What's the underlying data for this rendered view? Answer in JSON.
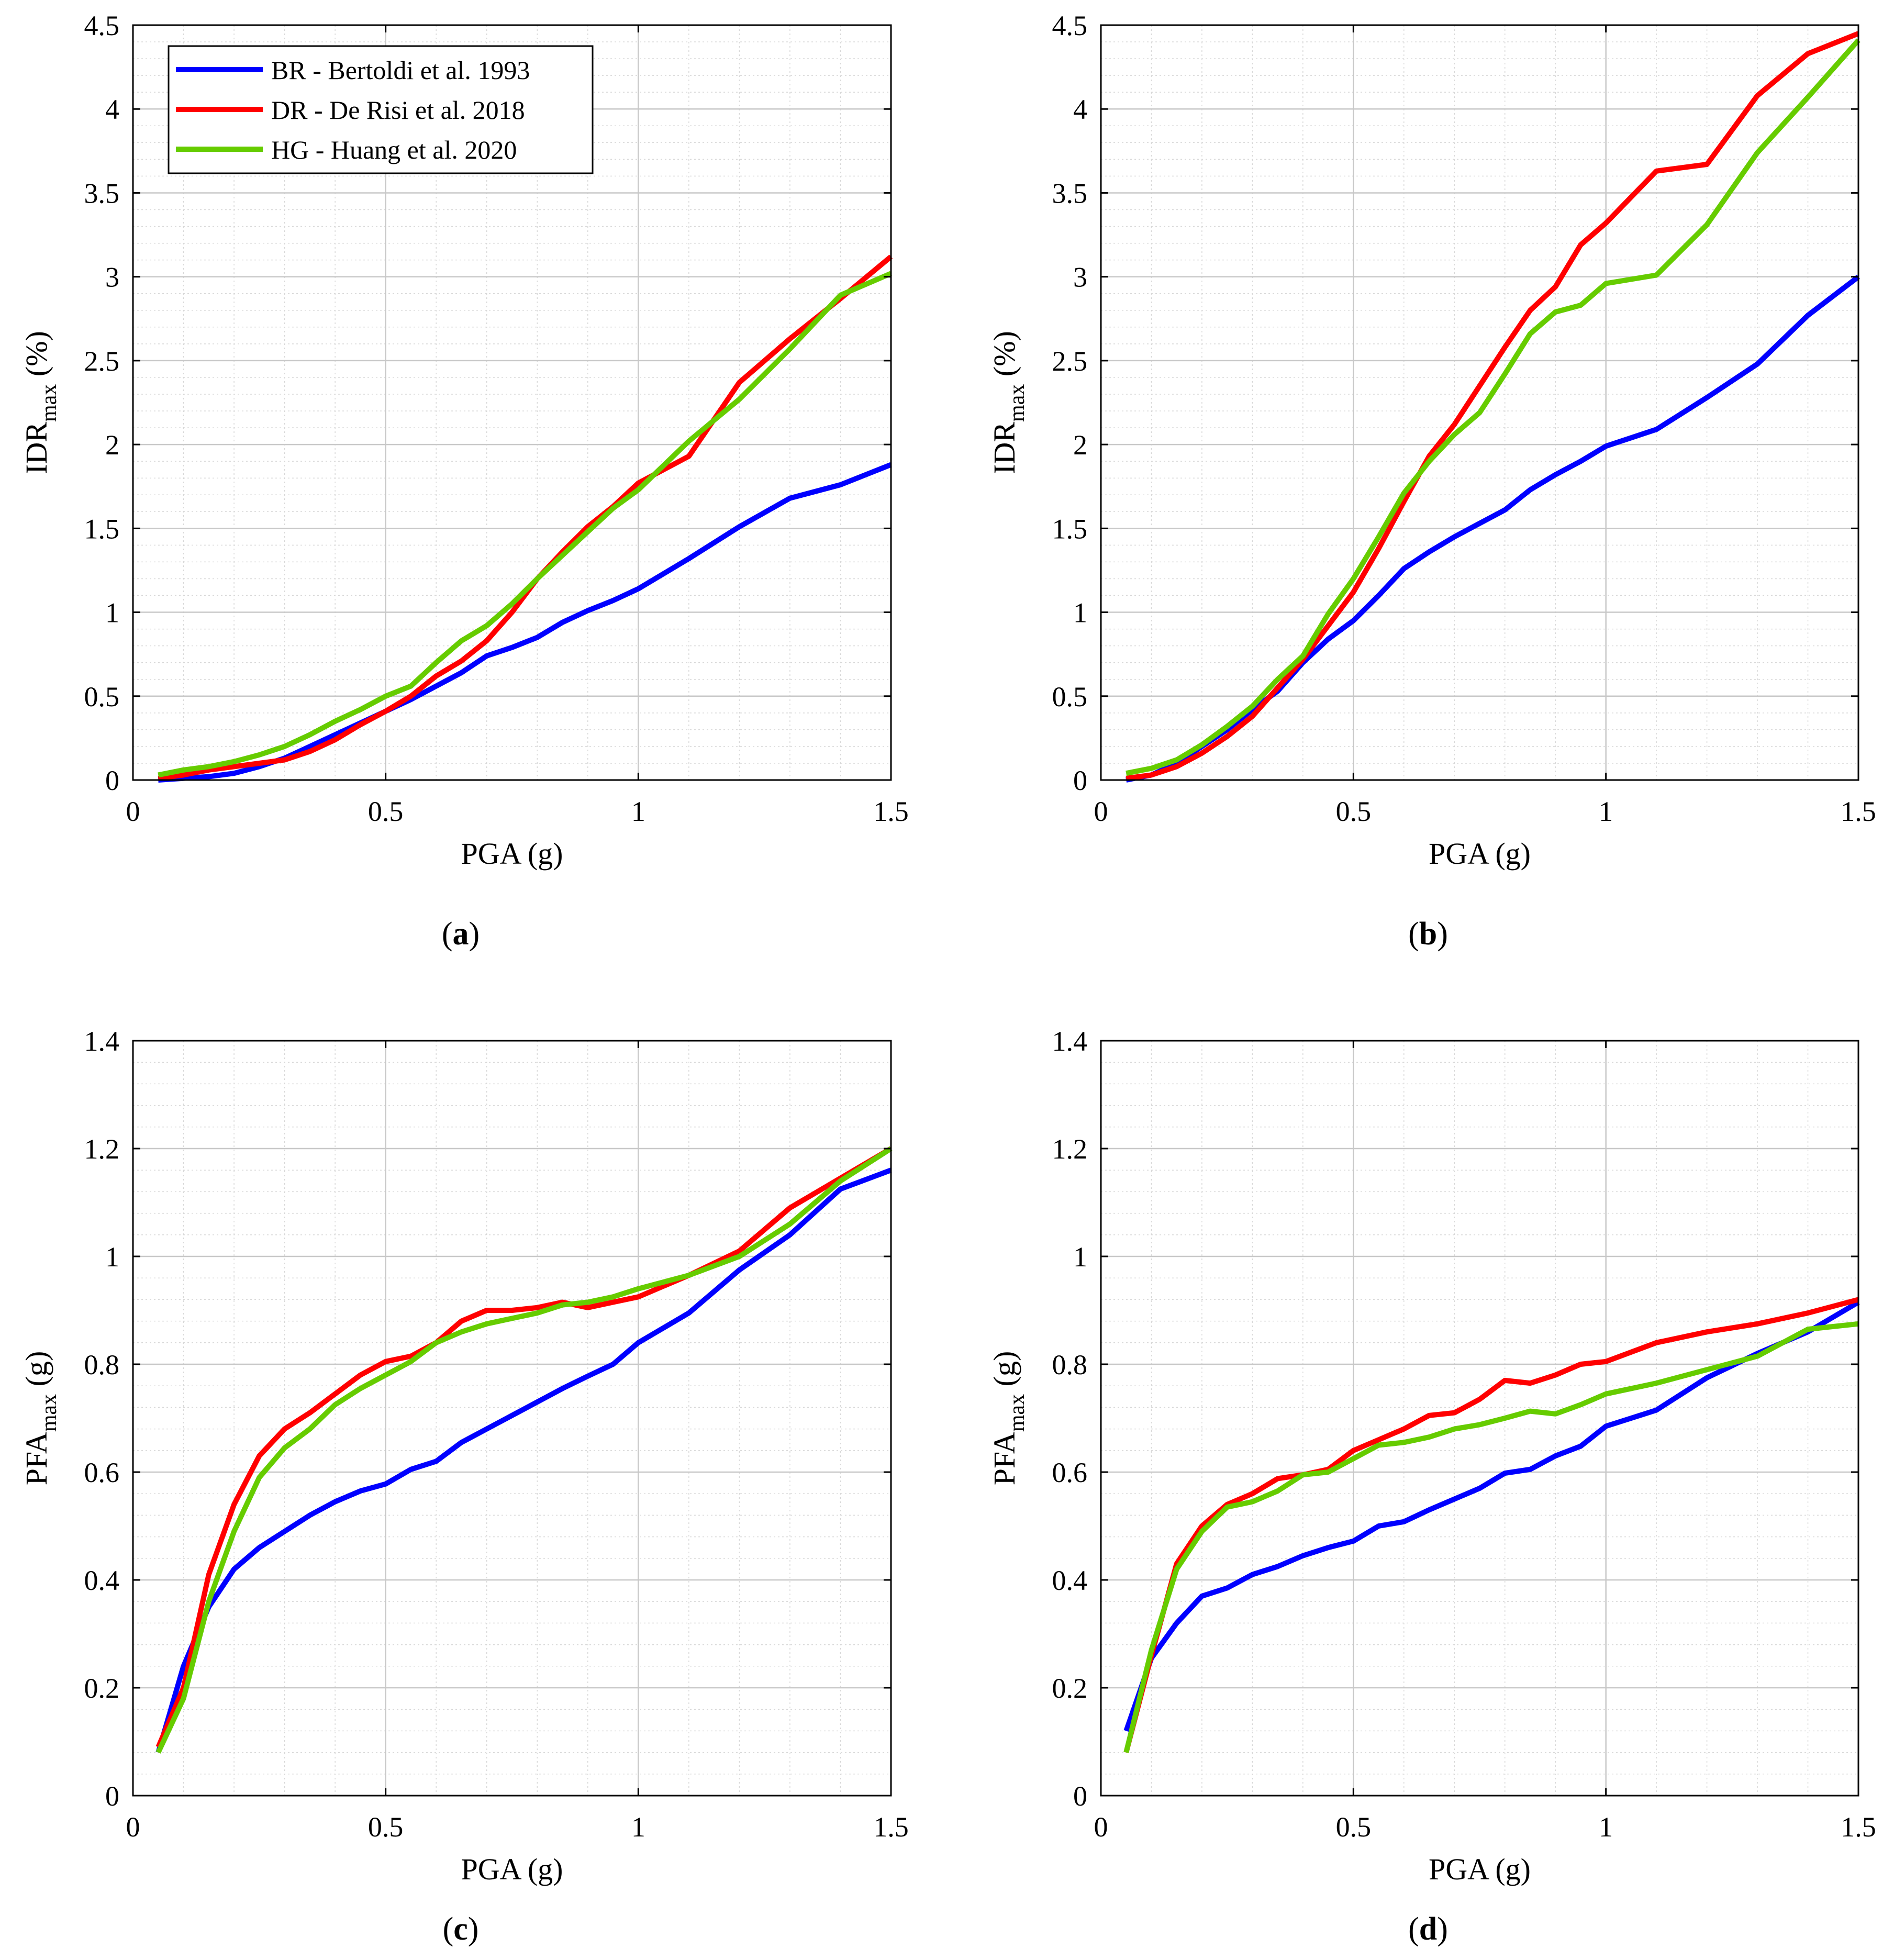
{
  "series_meta": [
    {
      "key": "BR",
      "name": "BR - Bertoldi et al. 1993",
      "color": "#0000ff"
    },
    {
      "key": "DR",
      "name": "DR - De Risi et al. 2018",
      "color": "#ff0000"
    },
    {
      "key": "HG",
      "name": "HG - Huang et al. 2020",
      "color": "#66cc00"
    }
  ],
  "legend_panel": "a",
  "chart_data": [
    {
      "type": "line",
      "panel": "a",
      "caption": "a",
      "xlabel": "PGA (g)",
      "ylabel": "IDR",
      "ylabel_sub": "max",
      "ylabel_unit": "(%)",
      "xlim": [
        0,
        1.5
      ],
      "ylim": [
        0,
        4.5
      ],
      "xticks": [
        0,
        0.5,
        1,
        1.5
      ],
      "xtick_labels": [
        "0",
        "0.5",
        "1",
        "1.5"
      ],
      "yticks": [
        0,
        0.5,
        1,
        1.5,
        2,
        2.5,
        3,
        3.5,
        4,
        4.5
      ],
      "ytick_labels": [
        "0",
        "0.5",
        "1",
        "1.5",
        "2",
        "2.5",
        "3",
        "3.5",
        "4",
        "4.5"
      ],
      "grid": true,
      "legend_position": "top-left",
      "series": [
        {
          "key": "BR",
          "name": "BR - Bertoldi et al. 1993",
          "x": [
            0.05,
            0.1,
            0.15,
            0.2,
            0.25,
            0.3,
            0.35,
            0.4,
            0.45,
            0.5,
            0.55,
            0.6,
            0.65,
            0.7,
            0.75,
            0.8,
            0.85,
            0.9,
            0.95,
            1.0,
            1.1,
            1.2,
            1.3,
            1.4,
            1.5
          ],
          "y": [
            0.0,
            0.01,
            0.02,
            0.04,
            0.08,
            0.13,
            0.2,
            0.27,
            0.34,
            0.41,
            0.48,
            0.56,
            0.64,
            0.74,
            0.79,
            0.85,
            0.94,
            1.01,
            1.07,
            1.14,
            1.32,
            1.51,
            1.68,
            1.76,
            1.88
          ]
        },
        {
          "key": "DR",
          "name": "DR - De Risi et al. 2018",
          "x": [
            0.05,
            0.1,
            0.15,
            0.2,
            0.25,
            0.3,
            0.35,
            0.4,
            0.45,
            0.5,
            0.55,
            0.6,
            0.65,
            0.7,
            0.75,
            0.8,
            0.85,
            0.9,
            0.95,
            1.0,
            1.1,
            1.2,
            1.3,
            1.4,
            1.5
          ],
          "y": [
            0.01,
            0.03,
            0.06,
            0.08,
            0.1,
            0.12,
            0.17,
            0.24,
            0.33,
            0.41,
            0.5,
            0.62,
            0.71,
            0.83,
            1.0,
            1.2,
            1.36,
            1.51,
            1.63,
            1.77,
            1.93,
            2.37,
            2.63,
            2.87,
            3.12
          ]
        },
        {
          "key": "HG",
          "name": "HG - Huang et al. 2020",
          "x": [
            0.05,
            0.1,
            0.15,
            0.2,
            0.25,
            0.3,
            0.35,
            0.4,
            0.45,
            0.5,
            0.55,
            0.6,
            0.65,
            0.7,
            0.75,
            0.8,
            0.85,
            0.9,
            0.95,
            1.0,
            1.1,
            1.2,
            1.3,
            1.4,
            1.5
          ],
          "y": [
            0.03,
            0.06,
            0.08,
            0.11,
            0.15,
            0.2,
            0.27,
            0.35,
            0.42,
            0.5,
            0.56,
            0.7,
            0.83,
            0.92,
            1.05,
            1.2,
            1.34,
            1.48,
            1.62,
            1.73,
            2.02,
            2.27,
            2.57,
            2.89,
            3.02
          ]
        }
      ]
    },
    {
      "type": "line",
      "panel": "b",
      "caption": "b",
      "xlabel": "PGA (g)",
      "ylabel": "IDR",
      "ylabel_sub": "max",
      "ylabel_unit": "(%)",
      "xlim": [
        0,
        1.5
      ],
      "ylim": [
        0,
        4.5
      ],
      "xticks": [
        0,
        0.5,
        1,
        1.5
      ],
      "xtick_labels": [
        "0",
        "0.5",
        "1",
        "1.5"
      ],
      "yticks": [
        0,
        0.5,
        1,
        1.5,
        2,
        2.5,
        3,
        3.5,
        4,
        4.5
      ],
      "ytick_labels": [
        "0",
        "0.5",
        "1",
        "1.5",
        "2",
        "2.5",
        "3",
        "3.5",
        "4",
        "4.5"
      ],
      "grid": true,
      "series": [
        {
          "key": "BR",
          "name": "BR - Bertoldi et al. 1993",
          "x": [
            0.05,
            0.1,
            0.15,
            0.2,
            0.25,
            0.3,
            0.35,
            0.4,
            0.45,
            0.5,
            0.55,
            0.6,
            0.65,
            0.7,
            0.75,
            0.8,
            0.85,
            0.9,
            0.95,
            1.0,
            1.1,
            1.2,
            1.3,
            1.4,
            1.5
          ],
          "y": [
            0.0,
            0.03,
            0.1,
            0.2,
            0.3,
            0.42,
            0.53,
            0.7,
            0.84,
            0.95,
            1.1,
            1.26,
            1.36,
            1.45,
            1.53,
            1.61,
            1.73,
            1.82,
            1.9,
            1.99,
            2.09,
            2.28,
            2.48,
            2.77,
            3.0
          ]
        },
        {
          "key": "DR",
          "name": "DR - De Risi et al. 2018",
          "x": [
            0.05,
            0.1,
            0.15,
            0.2,
            0.25,
            0.3,
            0.35,
            0.4,
            0.45,
            0.5,
            0.55,
            0.6,
            0.65,
            0.7,
            0.75,
            0.8,
            0.85,
            0.9,
            0.95,
            1.0,
            1.1,
            1.2,
            1.3,
            1.4,
            1.5
          ],
          "y": [
            0.01,
            0.03,
            0.08,
            0.16,
            0.26,
            0.38,
            0.55,
            0.72,
            0.92,
            1.12,
            1.38,
            1.66,
            1.93,
            2.12,
            2.35,
            2.58,
            2.8,
            2.94,
            3.19,
            3.32,
            3.63,
            3.67,
            4.08,
            4.33,
            4.45
          ]
        },
        {
          "key": "HG",
          "name": "HG - Huang et al. 2020",
          "x": [
            0.05,
            0.1,
            0.15,
            0.2,
            0.25,
            0.3,
            0.35,
            0.4,
            0.45,
            0.5,
            0.55,
            0.6,
            0.65,
            0.7,
            0.75,
            0.8,
            0.85,
            0.9,
            0.95,
            1.0,
            1.1,
            1.2,
            1.3,
            1.4,
            1.5
          ],
          "y": [
            0.04,
            0.07,
            0.12,
            0.21,
            0.32,
            0.44,
            0.6,
            0.74,
            0.99,
            1.2,
            1.45,
            1.71,
            1.9,
            2.06,
            2.19,
            2.42,
            2.66,
            2.79,
            2.83,
            2.96,
            3.01,
            3.31,
            3.74,
            4.07,
            4.41
          ]
        }
      ]
    },
    {
      "type": "line",
      "panel": "c",
      "caption": "c",
      "xlabel": "PGA (g)",
      "ylabel": "PFA",
      "ylabel_sub": "max",
      "ylabel_unit": "(g)",
      "xlim": [
        0,
        1.5
      ],
      "ylim": [
        0,
        1.4
      ],
      "xticks": [
        0,
        0.5,
        1,
        1.5
      ],
      "xtick_labels": [
        "0",
        "0.5",
        "1",
        "1.5"
      ],
      "yticks": [
        0,
        0.2,
        0.4,
        0.6,
        0.8,
        1,
        1.2,
        1.4
      ],
      "ytick_labels": [
        "0",
        "0.2",
        "0.4",
        "0.6",
        "0.8",
        "1",
        "1.2",
        "1.4"
      ],
      "grid": true,
      "series": [
        {
          "key": "BR",
          "name": "BR - Bertoldi et al. 1993",
          "x": [
            0.05,
            0.1,
            0.15,
            0.2,
            0.25,
            0.3,
            0.35,
            0.4,
            0.45,
            0.5,
            0.55,
            0.6,
            0.65,
            0.7,
            0.75,
            0.8,
            0.85,
            0.9,
            0.95,
            1.0,
            1.1,
            1.2,
            1.3,
            1.4,
            1.5
          ],
          "y": [
            0.08,
            0.24,
            0.35,
            0.42,
            0.46,
            0.49,
            0.52,
            0.545,
            0.565,
            0.578,
            0.605,
            0.62,
            0.655,
            0.68,
            0.705,
            0.73,
            0.755,
            0.778,
            0.8,
            0.84,
            0.895,
            0.975,
            1.04,
            1.125,
            1.16
          ]
        },
        {
          "key": "DR",
          "name": "DR - De Risi et al. 2018",
          "x": [
            0.05,
            0.1,
            0.15,
            0.2,
            0.25,
            0.3,
            0.35,
            0.4,
            0.45,
            0.5,
            0.55,
            0.6,
            0.65,
            0.7,
            0.75,
            0.8,
            0.85,
            0.9,
            0.95,
            1.0,
            1.1,
            1.2,
            1.3,
            1.4,
            1.5
          ],
          "y": [
            0.09,
            0.2,
            0.41,
            0.54,
            0.63,
            0.68,
            0.71,
            0.745,
            0.78,
            0.805,
            0.815,
            0.84,
            0.88,
            0.9,
            0.9,
            0.905,
            0.915,
            0.905,
            0.915,
            0.925,
            0.965,
            1.01,
            1.09,
            1.145,
            1.2
          ]
        },
        {
          "key": "HG",
          "name": "HG - Huang et al. 2020",
          "x": [
            0.05,
            0.1,
            0.15,
            0.2,
            0.25,
            0.3,
            0.35,
            0.4,
            0.45,
            0.5,
            0.55,
            0.6,
            0.65,
            0.7,
            0.75,
            0.8,
            0.85,
            0.9,
            0.95,
            1.0,
            1.1,
            1.2,
            1.3,
            1.4,
            1.5
          ],
          "y": [
            0.08,
            0.18,
            0.36,
            0.49,
            0.59,
            0.645,
            0.68,
            0.725,
            0.755,
            0.78,
            0.805,
            0.84,
            0.86,
            0.875,
            0.885,
            0.895,
            0.91,
            0.915,
            0.925,
            0.94,
            0.965,
            1.0,
            1.06,
            1.14,
            1.2
          ]
        }
      ]
    },
    {
      "type": "line",
      "panel": "d",
      "caption": "d",
      "xlabel": "PGA (g)",
      "ylabel": "PFA",
      "ylabel_sub": "max",
      "ylabel_unit": "(g)",
      "xlim": [
        0,
        1.5
      ],
      "ylim": [
        0,
        1.4
      ],
      "xticks": [
        0,
        0.5,
        1,
        1.5
      ],
      "xtick_labels": [
        "0",
        "0.5",
        "1",
        "1.5"
      ],
      "yticks": [
        0,
        0.2,
        0.4,
        0.6,
        0.8,
        1,
        1.2,
        1.4
      ],
      "ytick_labels": [
        "0",
        "0.2",
        "0.4",
        "0.6",
        "0.8",
        "1",
        "1.2",
        "1.4"
      ],
      "grid": true,
      "series": [
        {
          "key": "BR",
          "name": "BR - Bertoldi et al. 1993",
          "x": [
            0.05,
            0.1,
            0.15,
            0.2,
            0.25,
            0.3,
            0.35,
            0.4,
            0.45,
            0.5,
            0.55,
            0.6,
            0.65,
            0.7,
            0.75,
            0.8,
            0.85,
            0.9,
            0.95,
            1.0,
            1.1,
            1.2,
            1.3,
            1.4,
            1.5
          ],
          "y": [
            0.12,
            0.255,
            0.32,
            0.37,
            0.385,
            0.41,
            0.425,
            0.445,
            0.46,
            0.472,
            0.5,
            0.508,
            0.53,
            0.55,
            0.57,
            0.598,
            0.605,
            0.63,
            0.648,
            0.685,
            0.715,
            0.775,
            0.82,
            0.86,
            0.915
          ]
        },
        {
          "key": "DR",
          "name": "DR - De Risi et al. 2018",
          "x": [
            0.05,
            0.1,
            0.15,
            0.2,
            0.25,
            0.3,
            0.35,
            0.4,
            0.45,
            0.5,
            0.55,
            0.6,
            0.65,
            0.7,
            0.75,
            0.8,
            0.85,
            0.9,
            0.95,
            1.0,
            1.1,
            1.2,
            1.3,
            1.4,
            1.5
          ],
          "y": [
            0.08,
            0.26,
            0.43,
            0.5,
            0.54,
            0.56,
            0.588,
            0.595,
            0.605,
            0.64,
            0.66,
            0.68,
            0.705,
            0.71,
            0.735,
            0.77,
            0.765,
            0.78,
            0.8,
            0.805,
            0.84,
            0.86,
            0.875,
            0.895,
            0.92
          ]
        },
        {
          "key": "HG",
          "name": "HG - Huang et al. 2020",
          "x": [
            0.05,
            0.1,
            0.15,
            0.2,
            0.25,
            0.3,
            0.35,
            0.4,
            0.45,
            0.5,
            0.55,
            0.6,
            0.65,
            0.7,
            0.75,
            0.8,
            0.85,
            0.9,
            0.95,
            1.0,
            1.1,
            1.2,
            1.3,
            1.4,
            1.5
          ],
          "y": [
            0.08,
            0.27,
            0.42,
            0.49,
            0.535,
            0.545,
            0.565,
            0.595,
            0.6,
            0.625,
            0.65,
            0.655,
            0.665,
            0.68,
            0.688,
            0.7,
            0.713,
            0.708,
            0.725,
            0.745,
            0.765,
            0.79,
            0.815,
            0.865,
            0.875
          ]
        }
      ]
    }
  ]
}
